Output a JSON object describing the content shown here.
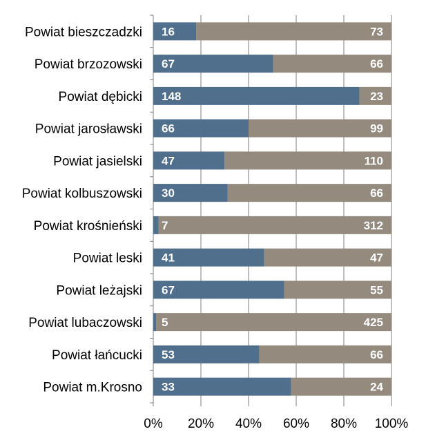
{
  "chart_data": {
    "type": "bar",
    "orientation": "horizontal",
    "stacked": "percent",
    "categories": [
      "Powiat bieszczadzki",
      "Powiat brzozowski",
      "Powiat dębicki",
      "Powiat jarosławski",
      "Powiat jasielski",
      "Powiat kolbuszowski",
      "Powiat krośnieński",
      "Powiat leski",
      "Powiat leżajski",
      "Powiat lubaczowski",
      "Powiat łańcucki",
      "Powiat m.Krosno"
    ],
    "series": [
      {
        "values": [
          16,
          67,
          148,
          66,
          47,
          30,
          7,
          41,
          67,
          5,
          53,
          33
        ],
        "color": "#4f6f8c"
      },
      {
        "values": [
          73,
          66,
          23,
          99,
          110,
          66,
          312,
          47,
          55,
          425,
          66,
          24
        ],
        "color": "#948a7e"
      }
    ],
    "x_ticks": [
      "0%",
      "20%",
      "40%",
      "60%",
      "80%",
      "100%"
    ],
    "xlim": [
      0,
      100
    ],
    "grid": true,
    "legend": "none",
    "title": "",
    "xlabel": "",
    "ylabel": ""
  }
}
